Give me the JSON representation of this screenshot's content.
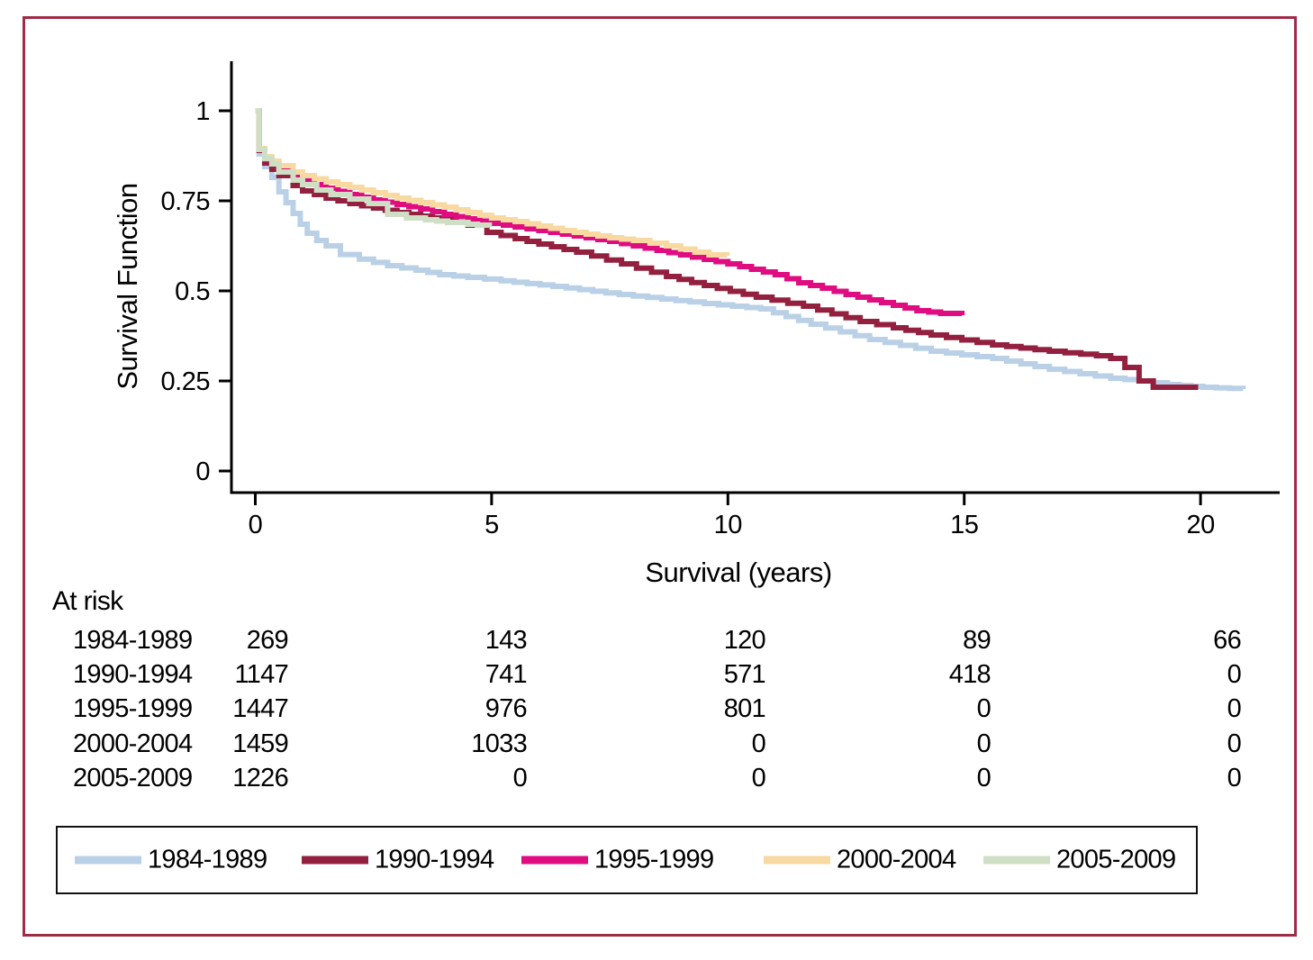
{
  "figure": {
    "border_color": "#a02b46",
    "background": "#ffffff"
  },
  "chart_data": {
    "type": "line",
    "subtype": "kaplan-meier-step",
    "title": "",
    "xlabel": "Survival (years)",
    "ylabel": "Survival Function",
    "xlim": [
      0,
      21.5
    ],
    "ylim": [
      0,
      1.1
    ],
    "xticks": [
      0,
      5,
      10,
      15,
      20
    ],
    "yticks": [
      1,
      0.75,
      0.5,
      0.25,
      0
    ],
    "ytick_labels": [
      "1",
      "0.75",
      "0.5",
      "0.25",
      "0"
    ],
    "grid": false,
    "legend_position": "bottom-box",
    "series": [
      {
        "name": "1984-1989",
        "color": "#b9d0e6",
        "points": [
          [
            0,
            1
          ],
          [
            0.08,
            0.88
          ],
          [
            0.2,
            0.845
          ],
          [
            0.35,
            0.815
          ],
          [
            0.5,
            0.775
          ],
          [
            0.65,
            0.745
          ],
          [
            0.8,
            0.715
          ],
          [
            0.95,
            0.685
          ],
          [
            1.1,
            0.66
          ],
          [
            1.3,
            0.64
          ],
          [
            1.5,
            0.625
          ],
          [
            1.8,
            0.601
          ],
          [
            2.2,
            0.588
          ],
          [
            2.8,
            0.57
          ],
          [
            3.4,
            0.5575
          ],
          [
            3.9,
            0.545
          ],
          [
            4.5,
            0.5375
          ],
          [
            5.2,
            0.528
          ],
          [
            6.3,
            0.5125
          ],
          [
            7.7,
            0.49
          ],
          [
            9.5,
            0.465
          ],
          [
            10.7,
            0.45
          ],
          [
            11.76,
            0.4075
          ],
          [
            13,
            0.365
          ],
          [
            14.3,
            0.3325
          ],
          [
            15.6,
            0.3125
          ],
          [
            16.8,
            0.2825
          ],
          [
            18.1,
            0.2575
          ],
          [
            18.7,
            0.25
          ],
          [
            19.3,
            0.24
          ],
          [
            20.05,
            0.2325
          ],
          [
            20.9,
            0.2275
          ]
        ]
      },
      {
        "name": "1990-1994",
        "color": "#93203f",
        "points": [
          [
            0,
            1
          ],
          [
            0.08,
            0.89
          ],
          [
            0.2,
            0.855
          ],
          [
            0.35,
            0.8375
          ],
          [
            0.5,
            0.82
          ],
          [
            0.8,
            0.7925
          ],
          [
            1,
            0.7775
          ],
          [
            1.5,
            0.7575
          ],
          [
            2,
            0.7425
          ],
          [
            2.5,
            0.73
          ],
          [
            3,
            0.7175
          ],
          [
            3.5,
            0.7075
          ],
          [
            4,
            0.6975
          ],
          [
            4.5,
            0.6825
          ],
          [
            4.9,
            0.6625
          ],
          [
            5.5,
            0.645
          ],
          [
            6,
            0.63
          ],
          [
            6.8,
            0.6075
          ],
          [
            7.75,
            0.575
          ],
          [
            8.7,
            0.54
          ],
          [
            9.5,
            0.515
          ],
          [
            10.6,
            0.4825
          ],
          [
            11.6,
            0.4575
          ],
          [
            12.8,
            0.415
          ],
          [
            13.5,
            0.3975
          ],
          [
            14.3,
            0.3775
          ],
          [
            15.6,
            0.35
          ],
          [
            16.8,
            0.3325
          ],
          [
            17.8,
            0.32
          ],
          [
            18.1,
            0.3125
          ],
          [
            18.4,
            0.2875
          ],
          [
            18.7,
            0.25
          ],
          [
            19,
            0.2325
          ],
          [
            19.95,
            0.2325
          ]
        ]
      },
      {
        "name": "1995-1999",
        "color": "#e00d81",
        "points": [
          [
            0,
            1
          ],
          [
            0.08,
            0.8925
          ],
          [
            0.2,
            0.865
          ],
          [
            0.35,
            0.8525
          ],
          [
            0.5,
            0.8375
          ],
          [
            0.8,
            0.8175
          ],
          [
            1,
            0.805
          ],
          [
            1.5,
            0.785
          ],
          [
            2,
            0.7675
          ],
          [
            2.5,
            0.7525
          ],
          [
            3,
            0.74
          ],
          [
            3.5,
            0.7275
          ],
          [
            4,
            0.7125
          ],
          [
            4.5,
            0.7
          ],
          [
            5,
            0.6875
          ],
          [
            5.5,
            0.6775
          ],
          [
            6,
            0.6675
          ],
          [
            6.5,
            0.6575
          ],
          [
            7,
            0.6475
          ],
          [
            7.5,
            0.6375
          ],
          [
            8,
            0.625
          ],
          [
            8.5,
            0.6125
          ],
          [
            9,
            0.6
          ],
          [
            9.5,
            0.5875
          ],
          [
            10,
            0.575
          ],
          [
            10.5,
            0.56
          ],
          [
            11,
            0.545
          ],
          [
            11.5,
            0.5225
          ],
          [
            12,
            0.5075
          ],
          [
            12.5,
            0.49
          ],
          [
            13,
            0.475
          ],
          [
            13.5,
            0.46
          ],
          [
            14,
            0.445
          ],
          [
            14.5,
            0.4375
          ],
          [
            14.95,
            0.4325
          ]
        ]
      },
      {
        "name": "2000-2004",
        "color": "#f7d9a1",
        "points": [
          [
            0,
            1
          ],
          [
            0.08,
            0.895
          ],
          [
            0.2,
            0.8725
          ],
          [
            0.35,
            0.86
          ],
          [
            0.5,
            0.8475
          ],
          [
            0.8,
            0.83
          ],
          [
            1,
            0.82
          ],
          [
            1.5,
            0.8025
          ],
          [
            2,
            0.7875
          ],
          [
            2.5,
            0.7725
          ],
          [
            3,
            0.7575
          ],
          [
            3.5,
            0.745
          ],
          [
            4,
            0.7325
          ],
          [
            4.5,
            0.7175
          ],
          [
            5,
            0.7025
          ],
          [
            5.5,
            0.6925
          ],
          [
            6,
            0.68
          ],
          [
            6.5,
            0.6675
          ],
          [
            7,
            0.6575
          ],
          [
            7.5,
            0.6475
          ],
          [
            8,
            0.64
          ],
          [
            8.7,
            0.625
          ],
          [
            9.3,
            0.6075
          ],
          [
            9.6,
            0.6
          ],
          [
            9.98,
            0.5975
          ]
        ]
      },
      {
        "name": "2005-2009",
        "color": "#cfdfc5",
        "points": [
          [
            0,
            1
          ],
          [
            0.08,
            0.8925
          ],
          [
            0.2,
            0.8675
          ],
          [
            0.35,
            0.8525
          ],
          [
            0.5,
            0.83
          ],
          [
            0.8,
            0.8075
          ],
          [
            1,
            0.795
          ],
          [
            1.3,
            0.78
          ],
          [
            1.6,
            0.7675
          ],
          [
            2,
            0.755
          ],
          [
            2.4,
            0.7425
          ],
          [
            2.8,
            0.7125
          ],
          [
            3.2,
            0.7025
          ],
          [
            3.6,
            0.6975
          ],
          [
            4.07,
            0.69
          ],
          [
            4.5,
            0.685
          ],
          [
            4.7,
            0.6825
          ],
          [
            4.95,
            0.6775
          ]
        ]
      }
    ]
  },
  "risk_table": {
    "title": "At risk",
    "time_points": [
      0,
      5,
      10,
      15,
      20
    ],
    "rows": [
      {
        "label": "1984-1989",
        "values": [
          "269",
          "143",
          "120",
          "89",
          "66"
        ]
      },
      {
        "label": "1990-1994",
        "values": [
          "1147",
          "741",
          "571",
          "418",
          "0"
        ]
      },
      {
        "label": "1995-1999",
        "values": [
          "1447",
          "976",
          "801",
          "0",
          "0"
        ]
      },
      {
        "label": "2000-2004",
        "values": [
          "1459",
          "1033",
          "0",
          "0",
          "0"
        ]
      },
      {
        "label": "2005-2009",
        "values": [
          "1226",
          "0",
          "0",
          "0",
          "0"
        ]
      }
    ]
  },
  "legend": {
    "items": [
      {
        "label": "1984-1989",
        "color": "#b9d0e6"
      },
      {
        "label": "1990-1994",
        "color": "#93203f"
      },
      {
        "label": "1995-1999",
        "color": "#e00d81"
      },
      {
        "label": "2000-2004",
        "color": "#f7d9a1"
      },
      {
        "label": "2005-2009",
        "color": "#cfdfc5"
      }
    ]
  }
}
